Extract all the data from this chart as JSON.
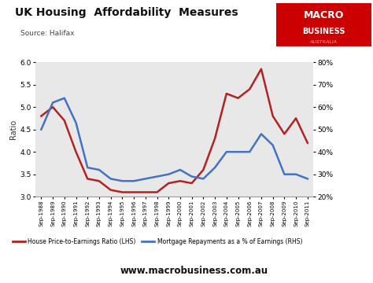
{
  "title": "UK Housing  Affordability  Measures",
  "source": "Source: Halifax",
  "url": "www.macrobusiness.com.au",
  "ylabel_left": "Ratio",
  "ylim_left": [
    3.0,
    6.0
  ],
  "ylim_right": [
    20,
    80
  ],
  "yticks_left": [
    3.0,
    3.5,
    4.0,
    4.5,
    5.0,
    5.5,
    6.0
  ],
  "yticks_right": [
    20,
    30,
    40,
    50,
    60,
    70,
    80
  ],
  "background_color": "#e8e8e8",
  "outer_background": "#ffffff",
  "lhs_color": "#b22222",
  "rhs_color": "#4472c4",
  "legend_lhs": "House Price-to-Earnings Ratio (LHS)",
  "legend_rhs": "Mortgage Repayments as a % of Earnings (RHS)",
  "x_labels": [
    "Sep-1988",
    "Sep-1989",
    "Sep-1990",
    "Sep-1991",
    "Sep-1992",
    "Sep-1993",
    "Sep-1994",
    "Sep-1995",
    "Sep-1996",
    "Sep-1997",
    "Sep-1998",
    "Sep-1999",
    "Sep-2000",
    "Sep-2001",
    "Sep-2002",
    "Sep-2003",
    "Sep-2004",
    "Sep-2005",
    "Sep-2006",
    "Sep-2007",
    "Sep-2008",
    "Sep-2009",
    "Sep-2010",
    "Sep-2011"
  ],
  "lhs_values": [
    4.8,
    5.0,
    4.7,
    4.0,
    3.4,
    3.35,
    3.15,
    3.1,
    3.1,
    3.1,
    3.1,
    3.3,
    3.35,
    3.3,
    3.6,
    4.3,
    5.3,
    5.2,
    5.4,
    5.85,
    4.8,
    4.4,
    4.75,
    4.2
  ],
  "rhs_values": [
    50,
    62,
    64,
    53,
    33,
    32,
    28,
    27,
    27,
    28,
    29,
    30,
    32,
    29,
    28,
    33,
    40,
    40,
    40,
    48,
    43,
    30,
    30,
    28
  ]
}
